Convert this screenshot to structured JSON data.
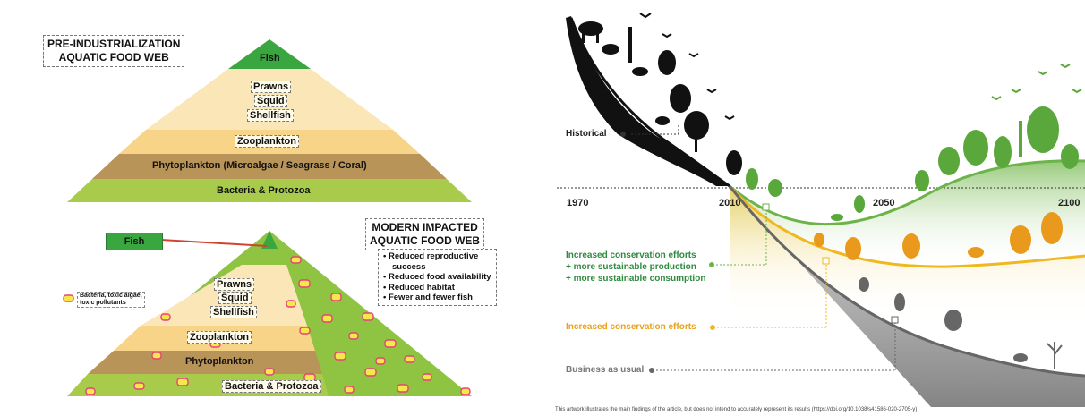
{
  "pre_industrial": {
    "title_line1": "PRE-INDUSTRIALIZATION",
    "title_line2": "AQUATIC FOOD WEB",
    "levels": {
      "fish": "Fish",
      "prawns": "Prawns",
      "squid": "Squid",
      "shellfish": "Shellfish",
      "zooplankton": "Zooplankton",
      "phytoplankton": "Phytoplankton (Microalgae / Seagrass / Coral)",
      "bacteria": "Bacteria & Protozoa"
    },
    "colors": {
      "fish": "#3aa640",
      "prawns": "#fbe6b7",
      "zooplankton": "#f7d487",
      "phytoplankton": "#b99458",
      "bacteria": "#a9cb4b"
    }
  },
  "modern": {
    "title_line1": "MODERN IMPACTED",
    "title_line2": "AQUATIC FOOD WEB",
    "impacts": [
      "• Reduced reproductive",
      "success",
      "• Reduced food availability",
      "• Reduced habitat",
      "• Fewer and fewer fish"
    ],
    "fish_label": "Fish",
    "legend_text_line1": "Bacteria, toxic algae,",
    "legend_text_line2": "toxic pollutants",
    "levels": {
      "prawns": "Prawns",
      "squid": "Squid",
      "shellfish": "Shellfish",
      "zooplankton": "Zooplankton",
      "phytoplankton": "Phytoplankton",
      "bacteria": "Bacteria & Protozoa"
    },
    "colors": {
      "pollutant": "#f5e94a",
      "pollutant_border": "#e8407a",
      "green": "#8fc443"
    }
  },
  "biodiversity": {
    "years": [
      "1970",
      "2010",
      "2050",
      "2100"
    ],
    "historical_label": "Historical",
    "scenarios": [
      {
        "label_line1": "Increased conservation efforts",
        "label_line2": "+ more sustainable production",
        "label_line3": "+ more sustainable consumption",
        "color": "#2e8b3e"
      },
      {
        "label_line1": "Increased conservation efforts",
        "color": "#e9a21a"
      },
      {
        "label_line1": "Business as usual",
        "color": "#777777"
      }
    ],
    "footnote": "This artwork illustrates the main findings of the article, but does not intend to accurately represent its results (https://doi.org/10.1038/s41586-020-2705-y)"
  }
}
